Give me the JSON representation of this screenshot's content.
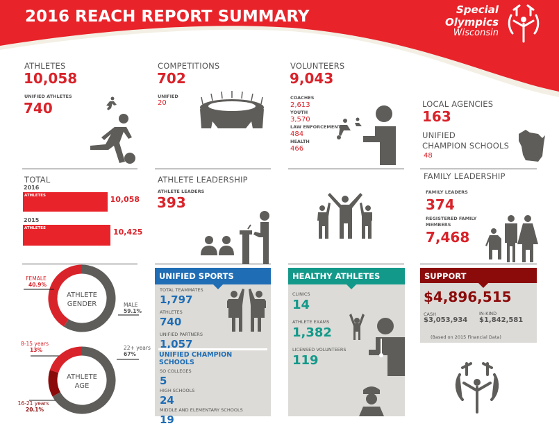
{
  "header": {
    "title": "2016 REACH REPORT SUMMARY",
    "logo": {
      "line1": "Special",
      "line2": "Olympics",
      "line3": "Wisconsin"
    }
  },
  "colors": {
    "red": "#d9232a",
    "dark_red": "#8b0a0a",
    "blue": "#1f6db5",
    "teal": "#13998a",
    "gray": "#5f5d5a",
    "panel": "#dcdbd7"
  },
  "athletes": {
    "label": "ATHLETES",
    "value": "10,058",
    "unified_label": "UNIFIED ATHLETES",
    "unified_value": "740"
  },
  "competitions": {
    "label": "COMPETITIONS",
    "value": "702",
    "unified_label": "UNIFIED",
    "unified_value": "20"
  },
  "volunteers": {
    "label": "VOLUNTEERS",
    "value": "9,043",
    "items": [
      {
        "label": "COACHES",
        "value": "2,613"
      },
      {
        "label": "YOUTH",
        "value": "3,570"
      },
      {
        "label": "LAW ENFORCEMENT",
        "value": "484"
      },
      {
        "label": "HEALTH",
        "value": "466"
      }
    ]
  },
  "agencies": {
    "label": "LOCAL AGENCIES",
    "value": "163",
    "ucs_label1": "UNIFIED",
    "ucs_label2": "CHAMPION SCHOOLS",
    "ucs_value": "48"
  },
  "total": {
    "label": "TOTAL",
    "bar_label": "ATHLETES"
  },
  "athlete_leadership": {
    "label": "ATHLETE LEADERSHIP",
    "leaders_label": "ATHLETE LEADERS",
    "leaders_value": "393"
  },
  "family_leadership": {
    "label": "FAMILY LEADERSHIP",
    "leaders_label": "FAMILY LEADERS",
    "leaders_value": "374",
    "registered_label1": "REGISTERED FAMILY",
    "registered_label2": "MEMBERS",
    "registered_value": "7,468"
  },
  "unified_sports": {
    "title": "UNIFIED SPORTS",
    "items": [
      {
        "label": "TOTAL TEAMMATES",
        "value": "1,797"
      },
      {
        "label": "ATHLETES",
        "value": "740"
      },
      {
        "label": "UNIFIED PARTNERS",
        "value": "1,057"
      }
    ],
    "ucs_title1": "UNIFIED CHAMPION",
    "ucs_title2": "SCHOOLS",
    "ucs_items": [
      {
        "label": "SO COLLEGES",
        "value": "5"
      },
      {
        "label": "HIGH SCHOOLS",
        "value": "24"
      },
      {
        "label": "MIDDLE AND ELEMENTARY SCHOOLS",
        "value": "19"
      }
    ]
  },
  "healthy_athletes": {
    "title": "HEALTHY ATHLETES",
    "items": [
      {
        "label": "CLINICS",
        "value": "14"
      },
      {
        "label": "ATHLETE EXAMS",
        "value": "1,382"
      },
      {
        "label": "LICENSED VOLUNTEERS",
        "value": "119"
      }
    ]
  },
  "support": {
    "title": "SUPPORT",
    "total": "$4,896,515",
    "cash_label": "CASH",
    "cash_value": "$3,053,934",
    "inkind_label": "IN-KIND",
    "inkind_value": "$1,842,581",
    "note": "(Based on 2015 Financial Data)"
  },
  "chart_data": [
    {
      "type": "bar",
      "orientation": "horizontal",
      "categories": [
        "2016",
        "2015"
      ],
      "series_label": "ATHLETES",
      "values": [
        10058,
        10425
      ],
      "value_labels": [
        "10,058",
        "10,425"
      ],
      "title": "TOTAL"
    },
    {
      "type": "pie",
      "donut": true,
      "center_label1": "ATHLETE",
      "center_label2": "GENDER",
      "slices": [
        {
          "label": "MALE",
          "value": 59.1,
          "text": "59.1%",
          "color": "#5f5d5a"
        },
        {
          "label": "FEMALE",
          "value": 40.9,
          "text": "40.9%",
          "color": "#d9232a"
        }
      ]
    },
    {
      "type": "pie",
      "donut": true,
      "center_label1": "ATHLETE",
      "center_label2": "AGE",
      "slices": [
        {
          "label": "22+ years",
          "value": 67,
          "text": "67%",
          "color": "#5f5d5a"
        },
        {
          "label": "8-15 years",
          "value": 13,
          "text": "13%",
          "color": "#8b0a0a"
        },
        {
          "label": "16-21 years",
          "value": 20.1,
          "text": "20.1%",
          "color": "#d9232a"
        }
      ]
    }
  ]
}
